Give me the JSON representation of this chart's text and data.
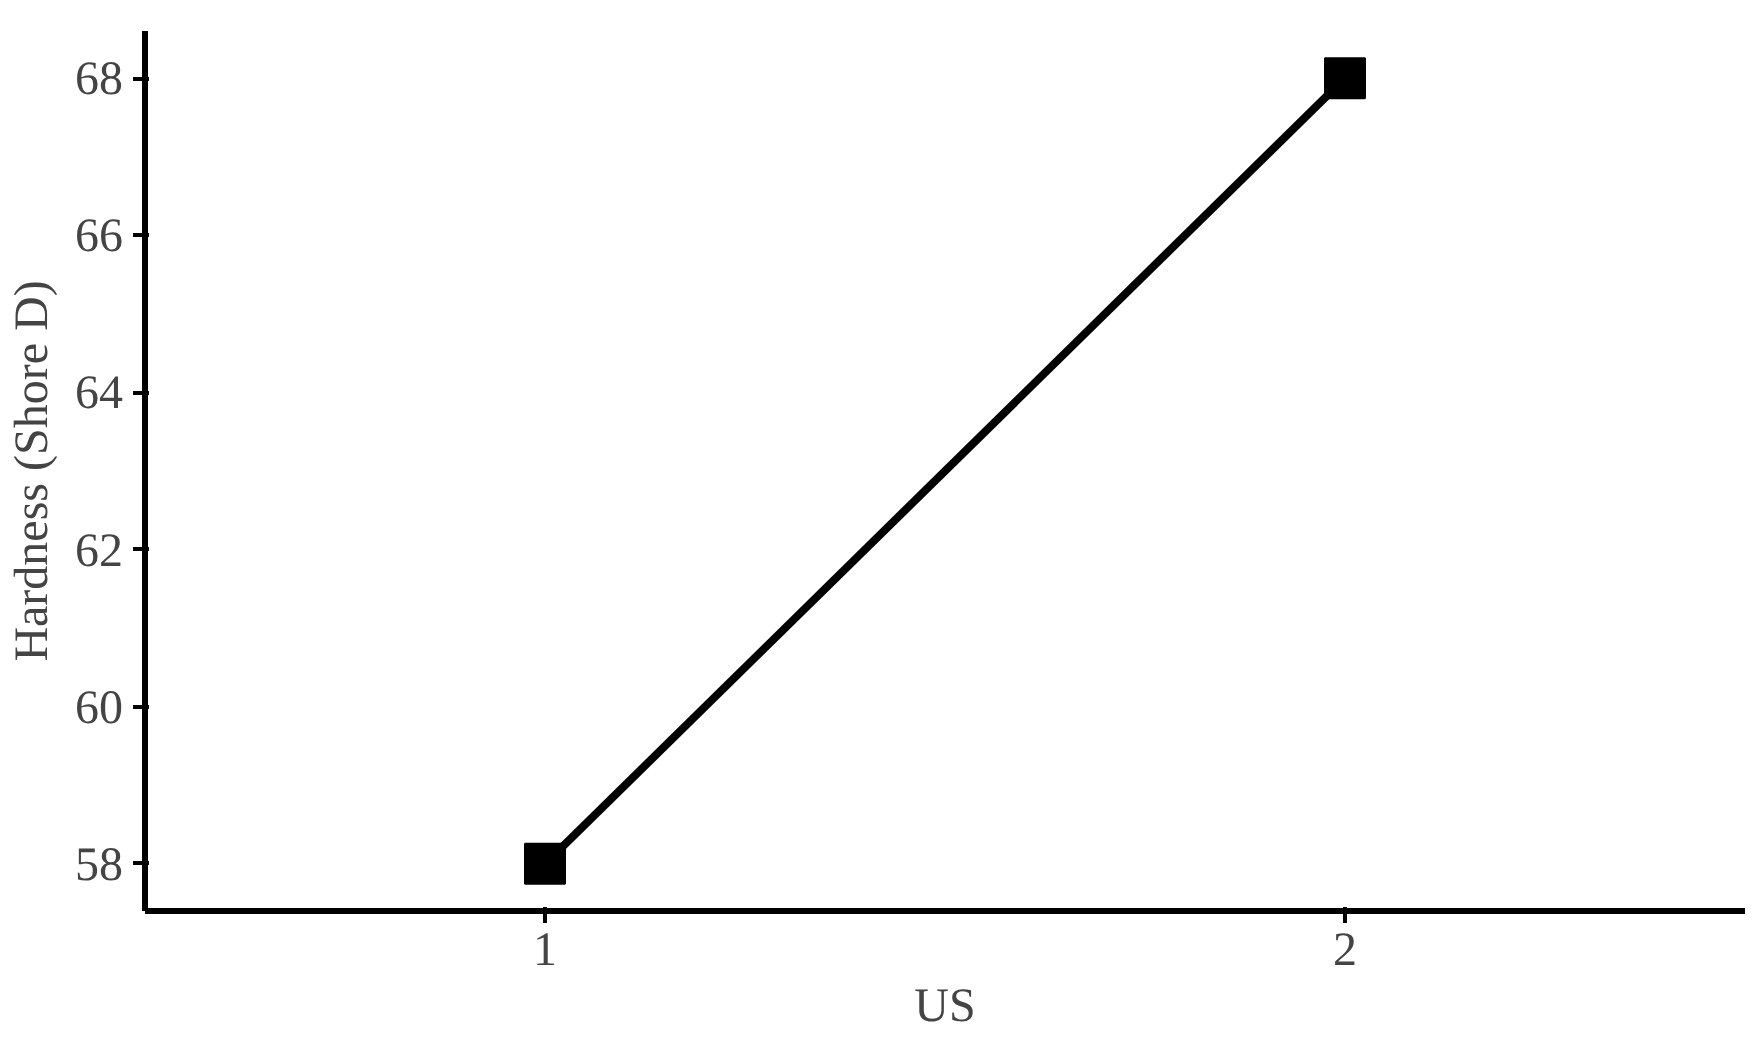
{
  "chart_data": {
    "type": "line",
    "xlabel": "US",
    "ylabel": "Hardness (Shore D)",
    "x": [
      1,
      2
    ],
    "series": [
      {
        "color": "#000000",
        "values": [
          58,
          68
        ]
      }
    ],
    "xlim": [
      0.5,
      2.5
    ],
    "xticks": [
      1,
      2
    ],
    "ylim": [
      57.4,
      68.6
    ],
    "yticks": [
      58,
      60,
      62,
      64,
      66,
      68
    ],
    "grid": false,
    "marker": "square",
    "line_style": "solid"
  }
}
